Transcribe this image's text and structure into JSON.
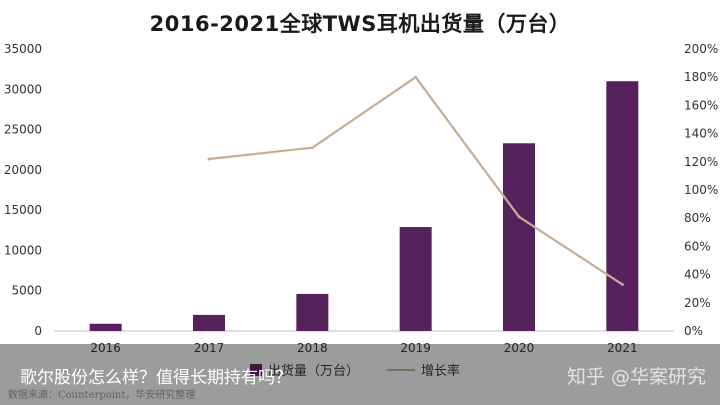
{
  "page": {
    "overlay_text": "歌尔股份怎么样？值得长期持有吗？",
    "watermark": "知乎 @华案研究",
    "source": "数据来源：Counterpoint，华安研究整理"
  },
  "chart_data": {
    "type": "bar",
    "title": "2016-2021全球TWS耳机出货量（万台）",
    "categories": [
      "2016",
      "2017",
      "2018",
      "2019",
      "2020",
      "2021"
    ],
    "series": [
      {
        "name": "出货量（万台）",
        "type": "bar",
        "axis": "left",
        "color": "#57215e",
        "values": [
          900,
          2000,
          4600,
          12900,
          23300,
          31000
        ]
      },
      {
        "name": "增长率",
        "type": "line",
        "axis": "right",
        "color": "#c6ad95",
        "values": [
          null,
          122,
          130,
          180,
          81,
          33
        ]
      }
    ],
    "y_left": {
      "min": 0,
      "max": 35000,
      "ticks": [
        0,
        5000,
        10000,
        15000,
        20000,
        25000,
        30000,
        35000
      ]
    },
    "y_right": {
      "min": 0,
      "max": 200,
      "ticks": [
        0,
        20,
        40,
        60,
        80,
        100,
        120,
        140,
        160,
        180,
        200
      ],
      "suffix": "%"
    },
    "grid": false,
    "legend_position": "bottom"
  }
}
